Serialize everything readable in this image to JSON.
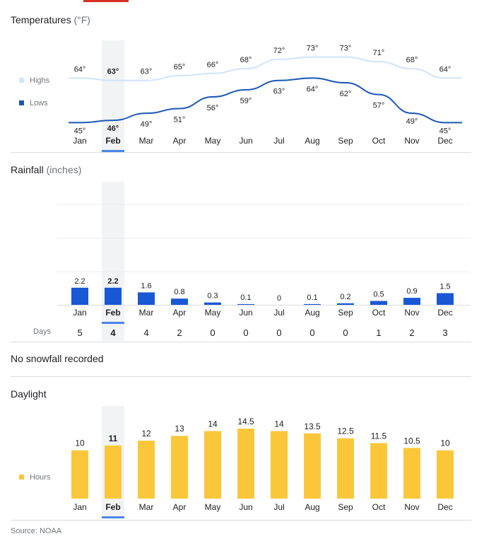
{
  "months": [
    "Jan",
    "Feb",
    "Mar",
    "Apr",
    "May",
    "Jun",
    "Jul",
    "Aug",
    "Sep",
    "Oct",
    "Nov",
    "Dec"
  ],
  "selected_month": "Feb",
  "colors": {
    "highs": "#d2e3fc",
    "lows": "#1a57b5",
    "rain": "#1a57d5",
    "daylight": "#fbc73a",
    "selected_band": "#f1f3f4",
    "selected_underline": "#4a86e8",
    "text": "#202124",
    "muted": "#70757a"
  },
  "temperatures": {
    "title": "Temperatures",
    "unit": "(°F)",
    "legend": {
      "highs": "Highs",
      "lows": "Lows"
    }
  },
  "rainfall": {
    "title": "Rainfall",
    "unit": "(inches)",
    "days_label": "Days"
  },
  "snowfall": {
    "note": "No snowfall recorded"
  },
  "daylight": {
    "title": "Daylight",
    "legend": "Hours"
  },
  "source": "Source: NOAA",
  "chart_data": [
    {
      "type": "line",
      "title": "Temperatures (°F)",
      "categories": [
        "Jan",
        "Feb",
        "Mar",
        "Apr",
        "May",
        "Jun",
        "Jul",
        "Aug",
        "Sep",
        "Oct",
        "Nov",
        "Dec"
      ],
      "series": [
        {
          "name": "Highs",
          "values": [
            64,
            63,
            63,
            65,
            66,
            68,
            72,
            73,
            73,
            71,
            68,
            64
          ],
          "labels": [
            "64°",
            "63°",
            "63°",
            "65°",
            "66°",
            "68°",
            "72°",
            "73°",
            "73°",
            "71°",
            "68°",
            "64°"
          ]
        },
        {
          "name": "Lows",
          "values": [
            45,
            46,
            49,
            51,
            56,
            59,
            63,
            64,
            62,
            57,
            49,
            45
          ],
          "labels": [
            "45°",
            "46°",
            "49°",
            "51°",
            "56°",
            "59°",
            "63°",
            "64°",
            "62°",
            "57°",
            "49°",
            "45°"
          ]
        }
      ],
      "ylim": [
        40,
        78
      ],
      "legend": "left",
      "grid": false
    },
    {
      "type": "bar",
      "title": "Rainfall (inches)",
      "categories": [
        "Jan",
        "Feb",
        "Mar",
        "Apr",
        "May",
        "Jun",
        "Jul",
        "Aug",
        "Sep",
        "Oct",
        "Nov",
        "Dec"
      ],
      "values": [
        2.2,
        2.2,
        1.6,
        0.8,
        0.3,
        0.1,
        0,
        0.1,
        0.2,
        0.5,
        0.9,
        1.5
      ],
      "labels": [
        "2.2",
        "2.2",
        "1.6",
        "0.8",
        "0.3",
        "0.1",
        "0",
        "0.1",
        "0.2",
        "0.5",
        "0.9",
        "1.5"
      ],
      "days": [
        "5",
        "4",
        "4",
        "2",
        "0",
        "0",
        "0",
        "0",
        "0",
        "1",
        "2",
        "3"
      ],
      "ylim": [
        0,
        6
      ],
      "grid": true
    },
    {
      "type": "bar",
      "title": "Daylight",
      "categories": [
        "Jan",
        "Feb",
        "Mar",
        "Apr",
        "May",
        "Jun",
        "Jul",
        "Aug",
        "Sep",
        "Oct",
        "Nov",
        "Dec"
      ],
      "series": [
        {
          "name": "Hours",
          "values": [
            10,
            11,
            12,
            13,
            14,
            14.5,
            14,
            13.5,
            12.5,
            11.5,
            10.5,
            10
          ],
          "labels": [
            "10",
            "11",
            "12",
            "13",
            "14",
            "14.5",
            "14",
            "13.5",
            "12.5",
            "11.5",
            "10.5",
            "10"
          ]
        }
      ],
      "ylim": [
        0,
        14.5
      ],
      "legend": "left",
      "grid": false
    }
  ]
}
